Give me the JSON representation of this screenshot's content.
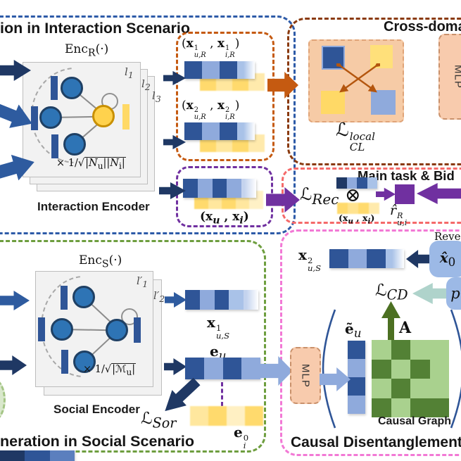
{
  "colors": {
    "navy": "#1F3864",
    "blue": "#2F5597",
    "light_blue": "#8FAADC",
    "yellow": "#FFD966",
    "orange": "#C55A11",
    "dark_orange_border": "#8A3A0F",
    "interaction_border": "#2E5BA8",
    "main_task_border": "#F56A6A",
    "causal_border": "#F279D5",
    "social_border": "#6E9E3F",
    "purple": "#7030A0",
    "peach": "#F8CBAD",
    "dark_green": "#4C7022",
    "matrix_dark": "#538135",
    "matrix_light": "#A9D18E",
    "teal_arrow": "#AFD3CB",
    "rounded_blue": "#9CB9E6"
  },
  "interaction": {
    "title": "ion in Interaction Scenario",
    "enc_label_html": "Enc<sub>R</sub>(·)",
    "layers_html": [
      "<i>l</i><sub>1</sub>",
      "<i>l</i><sub>2</sub>",
      "<i>l</i><sub>3</sub>"
    ],
    "norm_html": "× 1/√<span class=\"ol\">|<i>N</i><sub>u</sub>||<i>N</i><sub>i</sub>|</span>",
    "caption": "Interaction Encoder"
  },
  "pairs": {
    "pair1_html": "(<b>x</b><span class=\"ss\"><span>1</span><span><i>u,R</i></span></span> , <b>x</b><span class=\"ss\"><span>1</span><span><i>i,R</i></span></span>)",
    "pair2_html": "(<b>x</b><span class=\"ss\"><span>2</span><span><i>u,R</i></span></span> , <b>x</b><span class=\"ss\"><span>2</span><span><i>i,R</i></span></span>)",
    "pair_main_html": "(<b>x</b><sub><i>u</i></sub> , <b>x</b><sub><i>i</i></sub>)"
  },
  "cross_domain": {
    "title": "Cross-doma",
    "loss_html": "ℒ<span class=\"ss\"><span><i>local</i></span><span><i>CL</i></span></span>",
    "mlp": "MLP"
  },
  "main_task": {
    "title": "Main task & Bid",
    "loss_rec_html": "ℒ<sub><i>Rec</i></sub>",
    "otimes": "⊗",
    "pair_html": "(<b>x</b><sub><i>u</i></sub> , <b>x</b><sub><i>i</i></sub>)",
    "rhat_html": "<i>r̂</i><span class=\"ss\"><span><i>R</i></span><span><i>u,i</i></span></span>"
  },
  "social": {
    "title": "neration in Social Scenario",
    "enc_label_html": "Enc<sub>S</sub>(·)",
    "layers_html": [
      "<i>l</i>′<sub>1</sub>",
      "<i>l</i>′<sub>2</sub>"
    ],
    "norm_html": "× 1/√<span class=\"ol\">|ℳ<sub>u</sub>|</span>",
    "caption": "Social Encoder",
    "x1_html": "<b>x</b><span class=\"ss\"><span>1</span><span><i>u,S</i></span></span>",
    "eu_html": "<b>e</b><sub><i>u</i></sub>",
    "loss_sor_html": "ℒ<sub><i>Sor</i></sub>",
    "ei0_html": "<b>e</b><span class=\"ss\"><span>0</span><span><i>i</i></span></span>"
  },
  "causal_box": {
    "title": "Causal Disentanglement",
    "reversed_fragment": "Reve",
    "x2_html": "<b>x</b><span class=\"ss\"><span>2</span><span><i>u,S</i></span></span>",
    "xhat_html": "<b><i>x̂</i></b><sub>0</sub>",
    "loss_cd_html": "ℒ<sub><i>CD</i></sub>",
    "p_html": "<i>p</i>",
    "mlp": "MLP",
    "etilde_html": "<b>ẽ</b><sub><i>u</i></sub>",
    "A_html": "<b>A</b>",
    "graph_caption": "Causal Graph",
    "matrix": [
      [
        0,
        1,
        0,
        0
      ],
      [
        1,
        0,
        1,
        0
      ],
      [
        0,
        1,
        0,
        0
      ],
      [
        1,
        0,
        1,
        1
      ]
    ]
  },
  "bars": {
    "pair1_blue": [
      "#2F5597",
      "#8FAADC",
      "#2F5597",
      "#A9C2E8"
    ],
    "pair1_yellow": [
      "#FFD966",
      "#FFE699",
      "#FFD966",
      "#FFE9A8"
    ],
    "pair2_blue": [
      "#2F5597",
      "#8FAADC",
      "#2F5597",
      "#A9C2E8"
    ],
    "pair2_yellow": [
      "#FFD966",
      "#FFE699",
      "#FFD966",
      "#FFE9A8"
    ],
    "main_blue": [
      "#2F5597",
      "#8FAADC",
      "#2F5597",
      "#8FAADC",
      "#C4D3EE"
    ],
    "main_yellow": [
      "#FFD966",
      "#FFE699",
      "#FFD966",
      "#FFE699",
      "#FFF1C4"
    ],
    "mini_blue": [
      "#1F3864",
      "#8FAADC",
      "#2F5597",
      "#A9C2E8"
    ],
    "mini_yellow": [
      "#FFD966",
      "#FFE28A",
      "#FFD966",
      "#FFE9A8"
    ],
    "x1_social": [
      "#2F5597",
      "#8FAADC",
      "#2F5597",
      "#A9C2E8",
      "#C4D3EE"
    ],
    "eu": [
      "#2F5597",
      "#8FAADC",
      "#2F5597",
      "#8FAADC"
    ],
    "ei0": [
      "#FFE699",
      "#FFD966",
      "#FFF0C0",
      "#FFD966"
    ],
    "x2": [
      "#2F5597",
      "#8FAADC",
      "#2F5597",
      "#A9C2E8"
    ],
    "etilde": [
      "#2F5597",
      "#8FAADC",
      "#2F5597",
      "#8FAADC"
    ],
    "corner": [
      "#1F3864",
      "#2F5597",
      "#5B7FBE"
    ]
  }
}
